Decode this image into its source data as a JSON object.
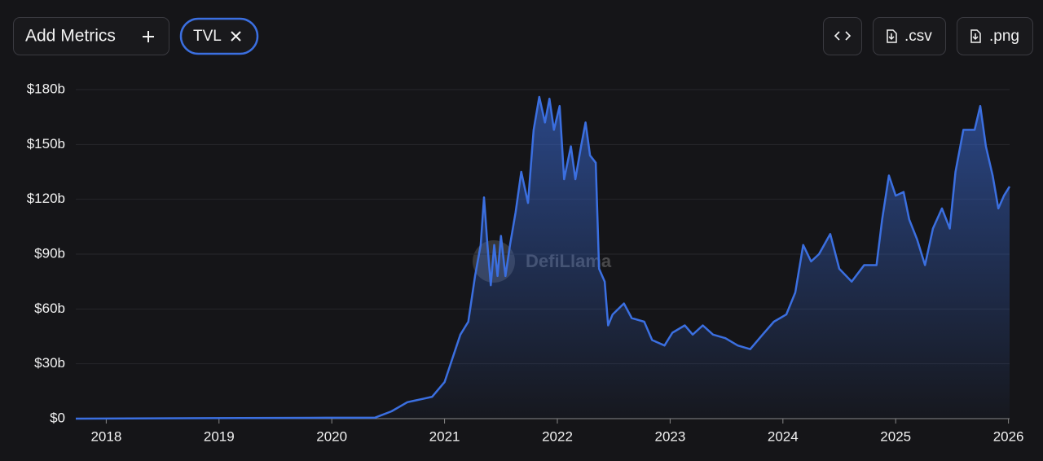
{
  "ui": {
    "add_metrics": "Add Metrics",
    "csv": ".csv",
    "png": ".png",
    "watermark": "DefiLlama"
  },
  "chart_data": {
    "type": "area",
    "x": [
      2017.73,
      2019.95,
      2020.38,
      2020.53,
      2020.67,
      2020.82,
      2020.89,
      2021.0,
      2021.07,
      2021.14,
      2021.21,
      2021.27,
      2021.32,
      2021.35,
      2021.38,
      2021.41,
      2021.44,
      2021.47,
      2021.5,
      2021.54,
      2021.58,
      2021.63,
      2021.68,
      2021.74,
      2021.79,
      2021.84,
      2021.89,
      2021.93,
      2021.97,
      2022.02,
      2022.06,
      2022.12,
      2022.16,
      2022.21,
      2022.25,
      2022.29,
      2022.34,
      2022.37,
      2022.42,
      2022.45,
      2022.49,
      2022.59,
      2022.66,
      2022.77,
      2022.84,
      2022.95,
      2023.02,
      2023.13,
      2023.2,
      2023.29,
      2023.38,
      2023.49,
      2023.6,
      2023.71,
      2023.82,
      2023.92,
      2024.03,
      2024.11,
      2024.18,
      2024.25,
      2024.32,
      2024.42,
      2024.5,
      2024.61,
      2024.72,
      2024.83,
      2024.88,
      2024.94,
      2025.0,
      2025.07,
      2025.12,
      2025.19,
      2025.26,
      2025.33,
      2025.41,
      2025.48,
      2025.53,
      2025.6,
      2025.7,
      2025.75,
      2025.8,
      2025.86,
      2025.91,
      2025.96,
      2026.01
    ],
    "series": [
      {
        "name": "TVL",
        "color": "#3b6fe0",
        "values": [
          0,
          0.5,
          0.5,
          4,
          9,
          11,
          12,
          20,
          33,
          46,
          53,
          78,
          95,
          121,
          95,
          73,
          95,
          78,
          100,
          78,
          95,
          113,
          135,
          118,
          158,
          176,
          162,
          175,
          158,
          171,
          131,
          149,
          131,
          149,
          162,
          144,
          140,
          82,
          75,
          51,
          57,
          63,
          55,
          53,
          43,
          40,
          47,
          51,
          46,
          51,
          46,
          44,
          40,
          38,
          46,
          53,
          57,
          69,
          95,
          86,
          90,
          101,
          82,
          75,
          84,
          84,
          109,
          133,
          122,
          124,
          109,
          98,
          84,
          104,
          115,
          104,
          135,
          158,
          158,
          171,
          149,
          133,
          115,
          122,
          127
        ]
      }
    ],
    "xlim": [
      2017.73,
      2026.01
    ],
    "xticks": [
      2018,
      2019,
      2020,
      2021,
      2022,
      2023,
      2024,
      2025,
      2026
    ],
    "ylim": [
      0,
      180
    ],
    "yticks": [
      {
        "value": 0,
        "label": "$0"
      },
      {
        "value": 30,
        "label": "$30b"
      },
      {
        "value": 60,
        "label": "$60b"
      },
      {
        "value": 90,
        "label": "$90b"
      },
      {
        "value": 120,
        "label": "$120b"
      },
      {
        "value": 150,
        "label": "$150b"
      },
      {
        "value": 180,
        "label": "$180b"
      }
    ],
    "grid": true
  }
}
